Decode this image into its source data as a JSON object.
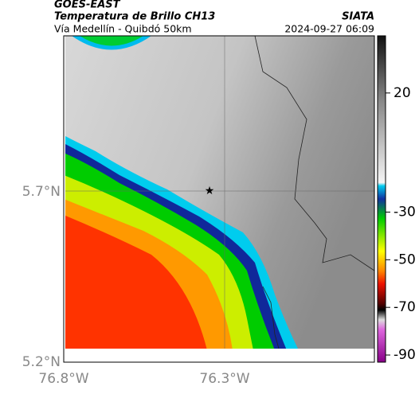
{
  "header": {
    "satellite": "GOES-EAST",
    "product": "Temperatura de Brillo CH13",
    "source": "SIATA",
    "route": "Vía Medellín - Quibdó 50km",
    "timestamp": "2024-09-27 06:09"
  },
  "map": {
    "lat_labels": [
      "5.7°N",
      "5.2°N"
    ],
    "lon_labels": [
      "76.8°W",
      "76.3°W"
    ]
  },
  "colorbar": {
    "lim": [
      -93,
      44
    ],
    "ticks": [
      20,
      -30,
      -50,
      -70,
      -90
    ]
  }
}
